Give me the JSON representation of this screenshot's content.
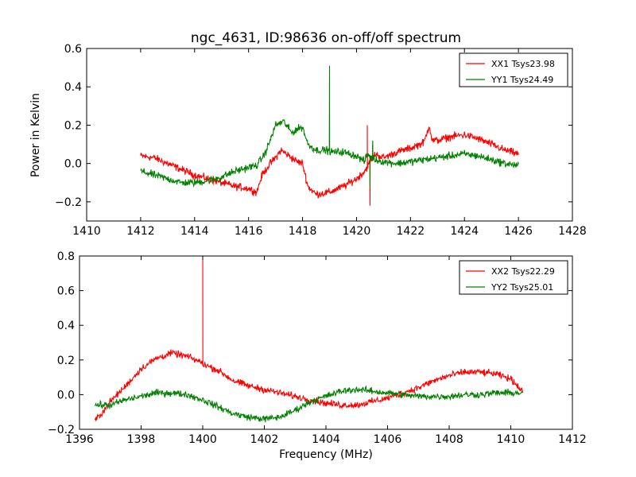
{
  "figure": {
    "title": "ngc_4631, ID:98636 on-off/off spectrum",
    "ylabel": "Power in Kelvin",
    "xlabel": "Frequency (MHz)"
  },
  "chart_data": [
    {
      "type": "line",
      "title": "ngc_4631, ID:98636 on-off/off spectrum",
      "xlabel": "",
      "ylabel": "Power in Kelvin",
      "xlim": [
        1410,
        1428
      ],
      "ylim": [
        -0.3,
        0.6
      ],
      "xticks": [
        "1410",
        "1412",
        "1414",
        "1416",
        "1418",
        "1420",
        "1422",
        "1424",
        "1426",
        "1428"
      ],
      "yticks": [
        "−0.2",
        "0.0",
        "0.2",
        "0.4",
        "0.6"
      ],
      "grid": false,
      "legend_position": "top-right",
      "series": [
        {
          "name": "XX1 Tsys23.98",
          "color": "#ff0000",
          "x": [
            1412.0,
            1412.5,
            1413.0,
            1413.5,
            1414.0,
            1414.5,
            1415.0,
            1415.5,
            1416.0,
            1416.3,
            1416.5,
            1416.8,
            1417.0,
            1417.2,
            1417.5,
            1417.8,
            1418.0,
            1418.2,
            1418.5,
            1419.0,
            1419.5,
            1420.0,
            1420.3,
            1420.4,
            1420.5,
            1420.6,
            1420.7,
            1421.0,
            1421.5,
            1422.0,
            1422.5,
            1422.7,
            1422.8,
            1423.0,
            1423.5,
            1424.0,
            1424.5,
            1425.0,
            1425.5,
            1426.0
          ],
          "y": [
            0.04,
            0.03,
            0.0,
            -0.03,
            -0.06,
            -0.08,
            -0.1,
            -0.12,
            -0.13,
            -0.15,
            -0.06,
            0.0,
            0.03,
            0.07,
            0.04,
            0.01,
            0.0,
            -0.12,
            -0.16,
            -0.15,
            -0.12,
            -0.08,
            -0.04,
            0.2,
            -0.22,
            0.1,
            0.05,
            0.03,
            0.06,
            0.08,
            0.11,
            0.2,
            0.12,
            0.12,
            0.14,
            0.15,
            0.13,
            0.1,
            0.07,
            0.05
          ]
        },
        {
          "name": "YY1 Tsys24.49",
          "color": "#008000",
          "x": [
            1412.0,
            1412.5,
            1413.0,
            1413.5,
            1414.0,
            1414.5,
            1415.0,
            1415.5,
            1416.0,
            1416.3,
            1416.6,
            1416.8,
            1417.0,
            1417.3,
            1417.6,
            1417.8,
            1418.0,
            1418.2,
            1418.5,
            1418.9,
            1419.0,
            1419.1,
            1419.5,
            1420.0,
            1420.3,
            1420.4,
            1420.5,
            1420.6,
            1420.7,
            1421.0,
            1421.5,
            1422.0,
            1422.5,
            1423.0,
            1423.5,
            1424.0,
            1424.5,
            1425.0,
            1425.5,
            1426.0
          ],
          "y": [
            -0.04,
            -0.06,
            -0.08,
            -0.1,
            -0.1,
            -0.09,
            -0.07,
            -0.04,
            -0.02,
            -0.01,
            0.05,
            0.12,
            0.2,
            0.22,
            0.16,
            0.18,
            0.19,
            0.1,
            0.07,
            0.07,
            0.51,
            0.06,
            0.06,
            0.04,
            0.01,
            0.05,
            -0.12,
            0.12,
            0.02,
            0.01,
            0.0,
            0.01,
            0.02,
            0.03,
            0.04,
            0.05,
            0.04,
            0.02,
            0.0,
            -0.01
          ]
        }
      ]
    },
    {
      "type": "line",
      "title": "",
      "xlabel": "Frequency (MHz)",
      "ylabel": "",
      "xlim": [
        1396,
        1412
      ],
      "ylim": [
        -0.2,
        0.8
      ],
      "xticks": [
        "1396",
        "1398",
        "1400",
        "1402",
        "1404",
        "1406",
        "1408",
        "1410",
        "1412"
      ],
      "yticks": [
        "−0.2",
        "0.0",
        "0.2",
        "0.4",
        "0.6",
        "0.8"
      ],
      "grid": false,
      "legend_position": "top-right",
      "series": [
        {
          "name": "XX2 Tsys22.29",
          "color": "#ff0000",
          "x": [
            1396.5,
            1396.8,
            1397.0,
            1397.5,
            1398.0,
            1398.5,
            1399.0,
            1399.5,
            1399.9,
            1400.0,
            1400.1,
            1400.5,
            1401.0,
            1401.5,
            1402.0,
            1402.5,
            1403.0,
            1403.5,
            1404.0,
            1404.5,
            1405.0,
            1405.5,
            1406.0,
            1406.5,
            1407.0,
            1407.5,
            1408.0,
            1408.5,
            1409.0,
            1409.5,
            1410.0,
            1410.4
          ],
          "y": [
            -0.15,
            -0.09,
            -0.04,
            0.05,
            0.15,
            0.21,
            0.24,
            0.22,
            0.19,
            0.78,
            0.17,
            0.14,
            0.08,
            0.05,
            0.03,
            0.01,
            -0.01,
            -0.03,
            -0.05,
            -0.06,
            -0.06,
            -0.04,
            -0.02,
            0.01,
            0.04,
            0.08,
            0.11,
            0.13,
            0.13,
            0.12,
            0.09,
            0.02
          ]
        },
        {
          "name": "YY2 Tsys25.01",
          "color": "#008000",
          "x": [
            1396.5,
            1397.0,
            1397.5,
            1398.0,
            1398.5,
            1399.0,
            1399.5,
            1400.0,
            1400.5,
            1401.0,
            1401.5,
            1402.0,
            1402.5,
            1403.0,
            1403.5,
            1404.0,
            1404.5,
            1405.0,
            1405.5,
            1406.0,
            1406.5,
            1407.0,
            1407.5,
            1408.0,
            1408.5,
            1409.0,
            1409.5,
            1410.0,
            1410.4
          ],
          "y": [
            -0.06,
            -0.06,
            -0.03,
            -0.01,
            0.01,
            0.01,
            0.0,
            -0.03,
            -0.07,
            -0.11,
            -0.13,
            -0.14,
            -0.13,
            -0.09,
            -0.04,
            -0.01,
            0.02,
            0.03,
            0.02,
            0.01,
            0.0,
            -0.01,
            -0.01,
            -0.01,
            0.0,
            0.0,
            0.01,
            0.01,
            0.01
          ]
        }
      ]
    }
  ]
}
